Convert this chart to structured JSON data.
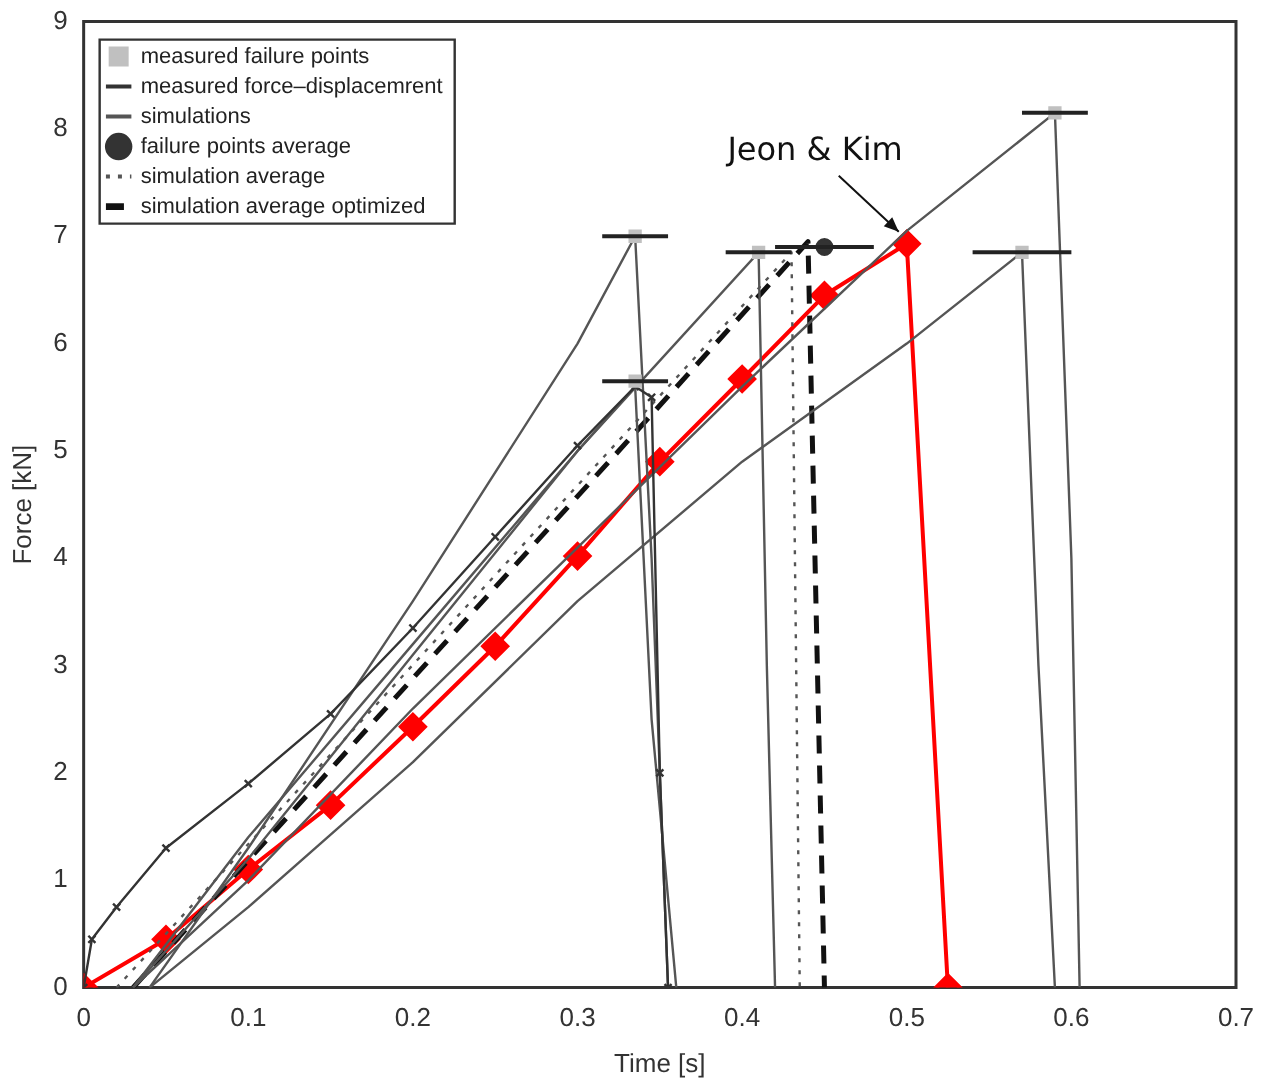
{
  "chart_data": {
    "type": "line",
    "xlabel": "Time [s]",
    "ylabel": "Force [kN]",
    "xlim": [
      0,
      0.7
    ],
    "ylim": [
      0,
      9
    ],
    "xticks": [
      0,
      0.1,
      0.2,
      0.3,
      0.4,
      0.5,
      0.6,
      0.7
    ],
    "yticks": [
      0,
      1,
      2,
      3,
      4,
      5,
      6,
      7,
      8,
      9
    ],
    "grid": false,
    "legend": "top left",
    "annotations": [
      {
        "text": "Jeon & Kim",
        "x": 0.5,
        "y": 6.93
      }
    ],
    "series": [
      {
        "name": "measured failure points",
        "type": "scatter",
        "marker": "square",
        "color": "#c0c0c0",
        "x": [
          0.335,
          0.41,
          0.335,
          0.57,
          0.59
        ],
        "values": [
          7.0,
          6.85,
          5.65,
          6.85,
          8.15
        ],
        "xerrors": [
          0.02,
          0.02,
          0.02,
          0.03,
          0.02
        ]
      },
      {
        "name": "measured force–displacemrent",
        "type": "line",
        "marker": "cross",
        "line_style": "solid",
        "color": "#333333",
        "x": [
          0,
          0.005,
          0.02,
          0.05,
          0.1,
          0.15,
          0.2,
          0.25,
          0.3,
          0.335,
          0.345,
          0.35,
          0.355
        ],
        "values": [
          0,
          0.45,
          0.75,
          1.3,
          1.9,
          2.55,
          3.35,
          4.2,
          5.05,
          5.6,
          5.5,
          2.0,
          0
        ]
      },
      {
        "name": "simulations",
        "type": "line",
        "marker": "none",
        "line_style": "solid",
        "color": "#555555",
        "x": [
          0.04,
          0.1,
          0.2,
          0.3,
          0.335,
          0.345,
          0.355
        ],
        "values": [
          0,
          1.3,
          3.6,
          6.0,
          7.0,
          4.0,
          0
        ]
      },
      {
        "type": "line",
        "marker": "none",
        "line_style": "solid",
        "color": "#555555",
        "x": [
          0.03,
          0.1,
          0.2,
          0.3,
          0.41,
          0.415,
          0.42
        ],
        "values": [
          0,
          1.2,
          3.1,
          5.0,
          6.85,
          3.0,
          0
        ]
      },
      {
        "type": "line",
        "marker": "none",
        "line_style": "solid",
        "color": "#555555",
        "x": [
          0.03,
          0.1,
          0.2,
          0.3,
          0.4,
          0.5,
          0.59,
          0.6,
          0.605
        ],
        "values": [
          0,
          1.0,
          2.6,
          4.1,
          5.6,
          7.05,
          8.15,
          4.0,
          0
        ]
      },
      {
        "type": "line",
        "marker": "none",
        "line_style": "solid",
        "color": "#555555",
        "x": [
          0.04,
          0.1,
          0.2,
          0.3,
          0.4,
          0.5,
          0.57,
          0.58,
          0.59
        ],
        "values": [
          0,
          0.75,
          2.1,
          3.6,
          4.9,
          6.0,
          6.85,
          3.0,
          0
        ]
      },
      {
        "type": "line",
        "marker": "none",
        "line_style": "solid",
        "color": "#555555",
        "x": [
          0.03,
          0.1,
          0.2,
          0.3,
          0.335,
          0.345,
          0.36
        ],
        "values": [
          0,
          1.4,
          3.2,
          5.0,
          5.6,
          2.5,
          0
        ]
      },
      {
        "name": "failure points average",
        "type": "scatter",
        "marker": "circle",
        "color": "#333333",
        "x": [
          0.45
        ],
        "values": [
          6.9
        ],
        "xerrors": [
          0.03
        ]
      },
      {
        "name": "simulation average",
        "type": "line",
        "marker": "none",
        "line_style": "dotted",
        "color": "#555555",
        "x": [
          0.02,
          0.43,
          0.435
        ],
        "values": [
          0,
          6.85,
          0
        ]
      },
      {
        "name": "simulation average optimized",
        "type": "line",
        "marker": "none",
        "line_style": "dashed",
        "color": "#111111",
        "x": [
          0.03,
          0.44,
          0.45
        ],
        "values": [
          0,
          6.95,
          0
        ]
      },
      {
        "type": "line",
        "marker": "diamond",
        "line_style": "solid",
        "color": "#ff0000",
        "x": [
          0,
          0.05,
          0.1,
          0.15,
          0.2,
          0.25,
          0.3,
          0.35,
          0.4,
          0.45,
          0.5,
          0.525
        ],
        "values": [
          0,
          0.45,
          1.1,
          1.7,
          2.43,
          3.18,
          4.02,
          4.9,
          5.67,
          6.45,
          6.93,
          0
        ]
      }
    ]
  }
}
